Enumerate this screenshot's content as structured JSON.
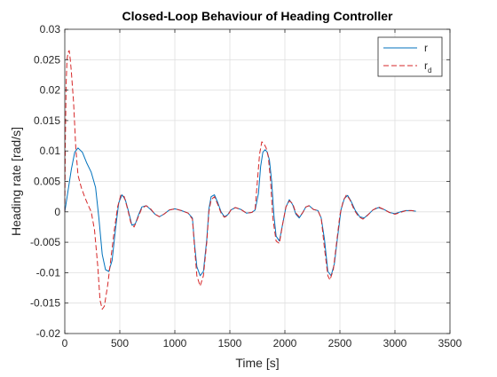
{
  "chart_data": {
    "type": "line",
    "title": "Closed-Loop Behaviour of Heading Controller",
    "xlabel": "Time [s]",
    "ylabel": "Heading rate [rad/s]",
    "xlim": [
      0,
      3500
    ],
    "ylim": [
      -0.02,
      0.03
    ],
    "x_ticks": [
      0,
      500,
      1000,
      1500,
      2000,
      2500,
      3000,
      3500
    ],
    "x_tick_labels": [
      "0",
      "500",
      "1000",
      "1500",
      "2000",
      "2500",
      "3000",
      "3500"
    ],
    "y_ticks": [
      -0.02,
      -0.015,
      -0.01,
      -0.005,
      0,
      0.005,
      0.01,
      0.015,
      0.02,
      0.025,
      0.03
    ],
    "y_tick_labels": [
      "-0.02",
      "-0.015",
      "-0.01",
      "-0.005",
      "0",
      "0.005",
      "0.01",
      "0.015",
      "0.02",
      "0.025",
      "0.03"
    ],
    "grid": true,
    "legend_position": "top-right",
    "series": [
      {
        "name": "r",
        "color": "#0072BD",
        "style": "solid",
        "points": [
          [
            0,
            0
          ],
          [
            30,
            0.0035
          ],
          [
            60,
            0.007
          ],
          [
            90,
            0.0098
          ],
          [
            120,
            0.0105
          ],
          [
            160,
            0.0098
          ],
          [
            200,
            0.008
          ],
          [
            240,
            0.0065
          ],
          [
            280,
            0.004
          ],
          [
            310,
            -0.001
          ],
          [
            340,
            -0.007
          ],
          [
            370,
            -0.0095
          ],
          [
            400,
            -0.0098
          ],
          [
            430,
            -0.008
          ],
          [
            460,
            -0.003
          ],
          [
            490,
            0.0015
          ],
          [
            520,
            0.0028
          ],
          [
            550,
            0.002
          ],
          [
            580,
            0
          ],
          [
            610,
            -0.0022
          ],
          [
            640,
            -0.002
          ],
          [
            670,
            -0.0005
          ],
          [
            700,
            0.0008
          ],
          [
            740,
            0.001
          ],
          [
            780,
            0.0004
          ],
          [
            820,
            -0.0004
          ],
          [
            860,
            -0.0008
          ],
          [
            900,
            -0.0004
          ],
          [
            950,
            0.0003
          ],
          [
            1000,
            0.0005
          ],
          [
            1060,
            0.0002
          ],
          [
            1120,
            -0.0002
          ],
          [
            1160,
            -0.001
          ],
          [
            1180,
            -0.0055
          ],
          [
            1200,
            -0.009
          ],
          [
            1230,
            -0.0105
          ],
          [
            1260,
            -0.0098
          ],
          [
            1290,
            -0.0045
          ],
          [
            1310,
            0.0005
          ],
          [
            1330,
            0.0025
          ],
          [
            1360,
            0.0028
          ],
          [
            1390,
            0.0015
          ],
          [
            1420,
            0
          ],
          [
            1450,
            -0.0008
          ],
          [
            1480,
            -0.0005
          ],
          [
            1510,
            0.0003
          ],
          [
            1550,
            0.0007
          ],
          [
            1600,
            0.0004
          ],
          [
            1650,
            -0.0002
          ],
          [
            1700,
            -0.0001
          ],
          [
            1730,
            0.0003
          ],
          [
            1760,
            0.003
          ],
          [
            1780,
            0.0075
          ],
          [
            1800,
            0.0098
          ],
          [
            1820,
            0.0102
          ],
          [
            1840,
            0.0098
          ],
          [
            1860,
            0.0085
          ],
          [
            1880,
            0.005
          ],
          [
            1900,
            -0.0005
          ],
          [
            1920,
            -0.004
          ],
          [
            1950,
            -0.0048
          ],
          [
            1980,
            -0.002
          ],
          [
            2010,
            0.0008
          ],
          [
            2040,
            0.002
          ],
          [
            2070,
            0.0012
          ],
          [
            2100,
            -0.0004
          ],
          [
            2130,
            -0.001
          ],
          [
            2160,
            -0.0002
          ],
          [
            2190,
            0.0008
          ],
          [
            2220,
            0.001
          ],
          [
            2260,
            0.0004
          ],
          [
            2300,
            0.0002
          ],
          [
            2330,
            -0.001
          ],
          [
            2360,
            -0.0045
          ],
          [
            2390,
            -0.0098
          ],
          [
            2420,
            -0.0105
          ],
          [
            2450,
            -0.0085
          ],
          [
            2480,
            -0.004
          ],
          [
            2510,
            0.0003
          ],
          [
            2540,
            0.0022
          ],
          [
            2570,
            0.0027
          ],
          [
            2600,
            0.0018
          ],
          [
            2640,
            0.0002
          ],
          [
            2680,
            -0.0008
          ],
          [
            2720,
            -0.001
          ],
          [
            2760,
            -0.0004
          ],
          [
            2800,
            0.0003
          ],
          [
            2850,
            0.0007
          ],
          [
            2900,
            0.0004
          ],
          [
            2950,
            -0.0001
          ],
          [
            3000,
            -0.0003
          ],
          [
            3050,
            0
          ],
          [
            3100,
            0.0002
          ],
          [
            3150,
            0.0002
          ],
          [
            3190,
            0.0001
          ]
        ]
      },
      {
        "name": "r_d",
        "color": "#D62728",
        "style": "dashed",
        "points": [
          [
            0,
            0
          ],
          [
            5,
            0.011
          ],
          [
            12,
            0.021
          ],
          [
            20,
            0.025
          ],
          [
            30,
            0.0262
          ],
          [
            40,
            0.0265
          ],
          [
            50,
            0.025
          ],
          [
            60,
            0.023
          ],
          [
            80,
            0.018
          ],
          [
            100,
            0.0105
          ],
          [
            120,
            0.006
          ],
          [
            150,
            0.004
          ],
          [
            180,
            0.0025
          ],
          [
            210,
            0.0012
          ],
          [
            240,
            0
          ],
          [
            270,
            -0.003
          ],
          [
            300,
            -0.009
          ],
          [
            320,
            -0.0145
          ],
          [
            340,
            -0.016
          ],
          [
            360,
            -0.0155
          ],
          [
            390,
            -0.012
          ],
          [
            420,
            -0.0075
          ],
          [
            450,
            -0.003
          ],
          [
            480,
            0.0008
          ],
          [
            510,
            0.0028
          ],
          [
            540,
            0.0025
          ],
          [
            570,
            0.0005
          ],
          [
            600,
            -0.0018
          ],
          [
            630,
            -0.0025
          ],
          [
            660,
            -0.0012
          ],
          [
            700,
            0.0006
          ],
          [
            740,
            0.001
          ],
          [
            780,
            0.0005
          ],
          [
            820,
            -0.0004
          ],
          [
            860,
            -0.0008
          ],
          [
            900,
            -0.0004
          ],
          [
            950,
            0.0003
          ],
          [
            1000,
            0.0005
          ],
          [
            1060,
            0.0002
          ],
          [
            1120,
            -0.0002
          ],
          [
            1160,
            -0.0012
          ],
          [
            1180,
            -0.006
          ],
          [
            1200,
            -0.0105
          ],
          [
            1230,
            -0.0122
          ],
          [
            1260,
            -0.0105
          ],
          [
            1290,
            -0.005
          ],
          [
            1310,
            0
          ],
          [
            1330,
            0.002
          ],
          [
            1360,
            0.0025
          ],
          [
            1390,
            0.0012
          ],
          [
            1420,
            -0.0002
          ],
          [
            1450,
            -0.0009
          ],
          [
            1480,
            -0.0006
          ],
          [
            1510,
            0.0003
          ],
          [
            1550,
            0.0007
          ],
          [
            1600,
            0.0004
          ],
          [
            1650,
            -0.0002
          ],
          [
            1700,
            -0.0001
          ],
          [
            1730,
            0.0005
          ],
          [
            1750,
            0.005
          ],
          [
            1770,
            0.0095
          ],
          [
            1790,
            0.0115
          ],
          [
            1810,
            0.0112
          ],
          [
            1830,
            0.0105
          ],
          [
            1850,
            0.009
          ],
          [
            1870,
            0.005
          ],
          [
            1890,
            -0.001
          ],
          [
            1920,
            -0.0048
          ],
          [
            1950,
            -0.0052
          ],
          [
            1980,
            -0.002
          ],
          [
            2010,
            0.0008
          ],
          [
            2040,
            0.0018
          ],
          [
            2070,
            0.0014
          ],
          [
            2100,
            -0.0002
          ],
          [
            2130,
            -0.0008
          ],
          [
            2160,
            -0.0002
          ],
          [
            2190,
            0.0008
          ],
          [
            2220,
            0.001
          ],
          [
            2260,
            0.0004
          ],
          [
            2300,
            0.0002
          ],
          [
            2330,
            -0.001
          ],
          [
            2360,
            -0.006
          ],
          [
            2390,
            -0.0105
          ],
          [
            2410,
            -0.0112
          ],
          [
            2440,
            -0.0095
          ],
          [
            2470,
            -0.005
          ],
          [
            2500,
            -0.0005
          ],
          [
            2530,
            0.0018
          ],
          [
            2560,
            0.0028
          ],
          [
            2590,
            0.002
          ],
          [
            2630,
            0.0003
          ],
          [
            2670,
            -0.0008
          ],
          [
            2710,
            -0.0012
          ],
          [
            2750,
            -0.0006
          ],
          [
            2800,
            0.0003
          ],
          [
            2850,
            0.0008
          ],
          [
            2900,
            0.0004
          ],
          [
            2950,
            -0.0001
          ],
          [
            3000,
            -0.0004
          ],
          [
            3050,
            -0.0001
          ],
          [
            3100,
            0.0002
          ],
          [
            3150,
            0.0002
          ],
          [
            3190,
            0.0001
          ]
        ]
      }
    ]
  },
  "legend": {
    "entries": [
      {
        "label": "r",
        "subscript": ""
      },
      {
        "label": "r",
        "subscript": "d"
      }
    ]
  }
}
